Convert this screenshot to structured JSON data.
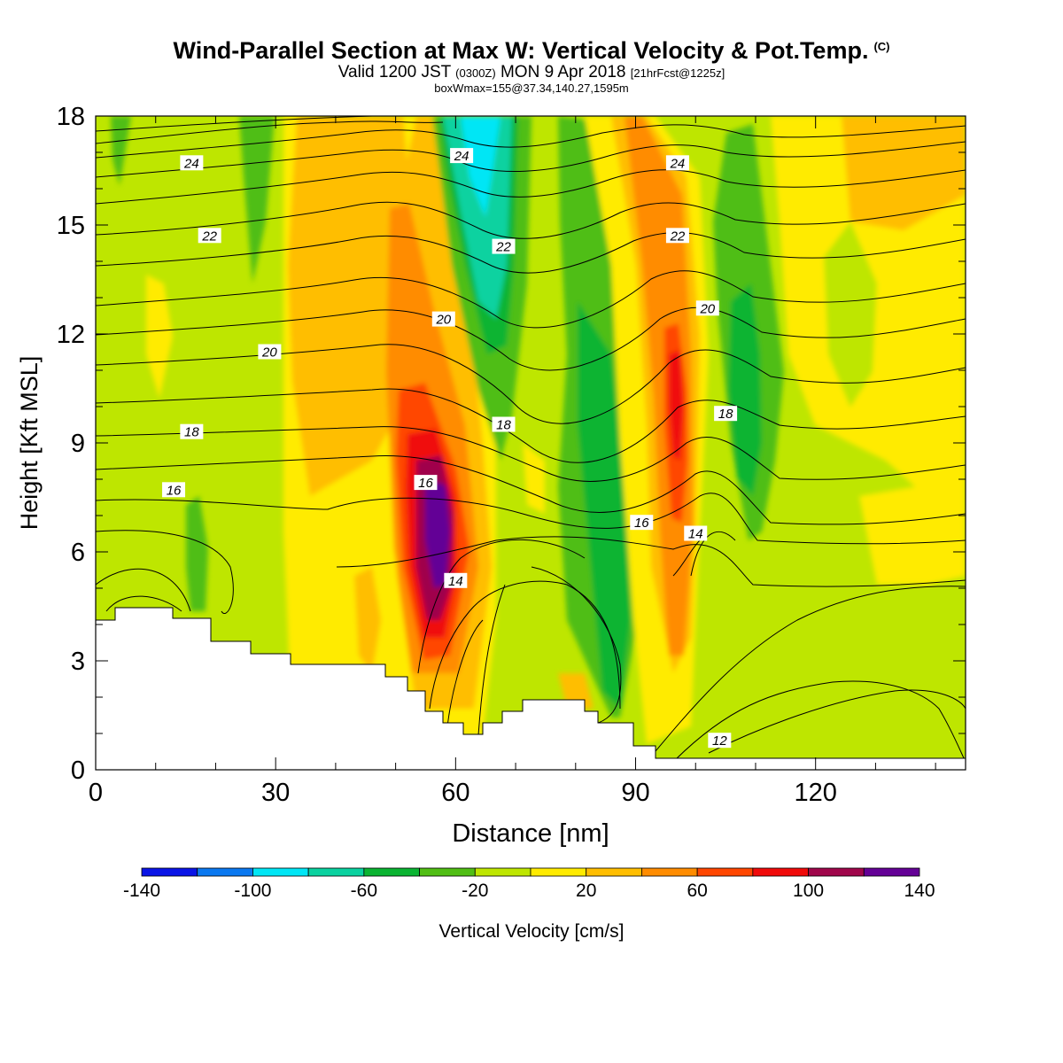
{
  "header": {
    "title": "Wind-Parallel Section at Max W: Vertical Velocity & Pot.Temp.",
    "copyright": "(C)",
    "valid_prefix": "Valid 1200 JST",
    "valid_utc": "(0300Z)",
    "valid_date": "MON 9 Apr 2018",
    "forecast_info": "[21hrFcst@1225z]",
    "box_info": "boxWmax=155@37.34,140.27,1595m"
  },
  "chart_data": {
    "type": "heatmap",
    "xlabel": "Distance [nm]",
    "ylabel": "Height [Kft MSL]",
    "xlim": [
      0,
      145
    ],
    "ylim": [
      0,
      18
    ],
    "x_ticks": [
      0,
      30,
      60,
      90,
      120
    ],
    "y_ticks": [
      0,
      3,
      6,
      9,
      12,
      15,
      18
    ],
    "colorbar": {
      "label": "Vertical Velocity [cm/s]",
      "ticks": [
        -140,
        -100,
        -60,
        -20,
        20,
        60,
        100,
        140
      ],
      "boundaries": [
        -140,
        -120,
        -100,
        -80,
        -60,
        -40,
        -20,
        0,
        20,
        40,
        60,
        80,
        100,
        120,
        140
      ],
      "colors": [
        "#0a14e6",
        "#0a78f0",
        "#00e6f5",
        "#0ad2a0",
        "#0ab432",
        "#50be14",
        "#bee600",
        "#ffeb00",
        "#ffbe00",
        "#ff8c00",
        "#ff4600",
        "#f00a0a",
        "#a0064b",
        "#640096"
      ]
    },
    "max_box": {
      "w_cm_s": 155,
      "lat": 37.34,
      "lon": 140.27,
      "height_m": 1595
    },
    "theta_contour_labels": [
      {
        "text": "24",
        "x": 16,
        "y": 16.7
      },
      {
        "text": "24",
        "x": 61,
        "y": 16.9
      },
      {
        "text": "24",
        "x": 97,
        "y": 16.7
      },
      {
        "text": "22",
        "x": 19,
        "y": 14.7
      },
      {
        "text": "22",
        "x": 68,
        "y": 14.4
      },
      {
        "text": "22",
        "x": 97,
        "y": 14.7
      },
      {
        "text": "20",
        "x": 29,
        "y": 11.5
      },
      {
        "text": "20",
        "x": 58,
        "y": 12.4
      },
      {
        "text": "20",
        "x": 102,
        "y": 12.7
      },
      {
        "text": "18",
        "x": 16,
        "y": 9.3
      },
      {
        "text": "18",
        "x": 68,
        "y": 9.5
      },
      {
        "text": "18",
        "x": 105,
        "y": 9.8
      },
      {
        "text": "16",
        "x": 13,
        "y": 7.7
      },
      {
        "text": "16",
        "x": 55,
        "y": 7.9
      },
      {
        "text": "16",
        "x": 91,
        "y": 6.8
      },
      {
        "text": "14",
        "x": 60,
        "y": 5.2
      },
      {
        "text": "14",
        "x": 100,
        "y": 6.5
      },
      {
        "text": "12",
        "x": 104,
        "y": 0.8
      }
    ]
  },
  "colors": {
    "background_field": "#bee600",
    "terrain": "#ffffff",
    "contour": "#000000"
  }
}
